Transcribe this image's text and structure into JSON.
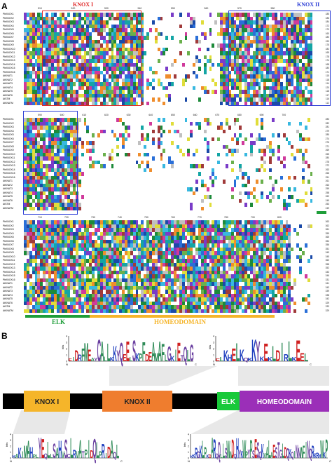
{
  "panels": {
    "a": "A",
    "b": "B"
  },
  "alignment": {
    "sequences": [
      "PbKNOX1",
      "PbKNOX2",
      "PbKNOX3",
      "PbKNOX4",
      "PbKNOX5",
      "PbKNOX6",
      "PbKNOX7",
      "PbKNOX8",
      "PbKNOX9",
      "PbKNOX10",
      "PbKNOX11",
      "PbKNOX12",
      "PbKNOX13",
      "PbKNOX14",
      "PbKNOX15",
      "PbKNOX16",
      "AtKNAT1",
      "AtKNAT2",
      "AtKNAT3",
      "AtKNAT4",
      "AtKNAT5",
      "AtKNAT6",
      "AtSTM",
      "AtKNATM"
    ],
    "block1_ticks": [
      "510",
      "520",
      "530",
      "540",
      "550",
      "560",
      "570",
      "580"
    ],
    "block2_ticks": [
      "590",
      "600",
      "610",
      "620",
      "630",
      "640",
      "650",
      "660",
      "670",
      "680",
      "690",
      "700"
    ],
    "block3_ticks": [
      "710",
      "720",
      "730",
      "740",
      "750",
      "760",
      "770",
      "780",
      "790",
      "800"
    ],
    "block1_ends": [
      "185",
      "186",
      "184",
      "172",
      "170",
      "160",
      "180",
      "190",
      "175",
      "182",
      "165",
      "178",
      "174",
      "168",
      "180",
      "171",
      "115",
      "118",
      "114",
      "120",
      "118",
      "117",
      "116",
      "112"
    ],
    "block2_ends": [
      "283",
      "282",
      "281",
      "279",
      "285",
      "274",
      "276",
      "271",
      "269",
      "265",
      "280",
      "278",
      "272",
      "263",
      "266",
      "251",
      "261",
      "263",
      "259",
      "258",
      "262",
      "249",
      "253",
      "249"
    ],
    "block3_ends": [
      "363",
      "362",
      "361",
      "359",
      "365",
      "354",
      "356",
      "351",
      "349",
      "345",
      "360",
      "358",
      "352",
      "343",
      "346",
      "331",
      "341",
      "343",
      "339",
      "338",
      "342",
      "329",
      "333",
      "329"
    ],
    "knox1_label": "KNOX I",
    "knox2_label": "KNOX II",
    "elk_label": "ELK",
    "homeodomain_label": "HOMEODOMAIN"
  },
  "domain_diagram": {
    "domains": [
      "KNOX I",
      "KNOX II",
      "ELK",
      "HOMEODOMAIN"
    ],
    "colors": {
      "knox1": "#f5b52a",
      "knox2": "#ef7d2e",
      "elk": "#19c93a",
      "homeodomain": "#9b2fb8",
      "backbone": "#000000"
    }
  },
  "logos": {
    "bits_label": "bits",
    "y_ticks": [
      "4",
      "3",
      "2",
      "1",
      "0"
    ],
    "n_label": "N",
    "c_label": "C",
    "knox2_logo": {
      "letters": "EIDRFMEAYCALLKKYQEELSKPFDEAMAFLGKIETQLG"
    },
    "elk_logo": {
      "letters": "ELKHELKQKKYKEKLDIRLKEEL"
    },
    "knox1_logo": {
      "letters": "KAKIMAHPLYEQLLSAHVSCLRVATPIDQLPRIDAQL"
    },
    "homeodomain_logo": {
      "letters": "KKRGKLPKDARQQLLSWWDQHYKWPYPSESQKVALAESTGLDQKQINNWFINQRKRHWKP"
    }
  }
}
